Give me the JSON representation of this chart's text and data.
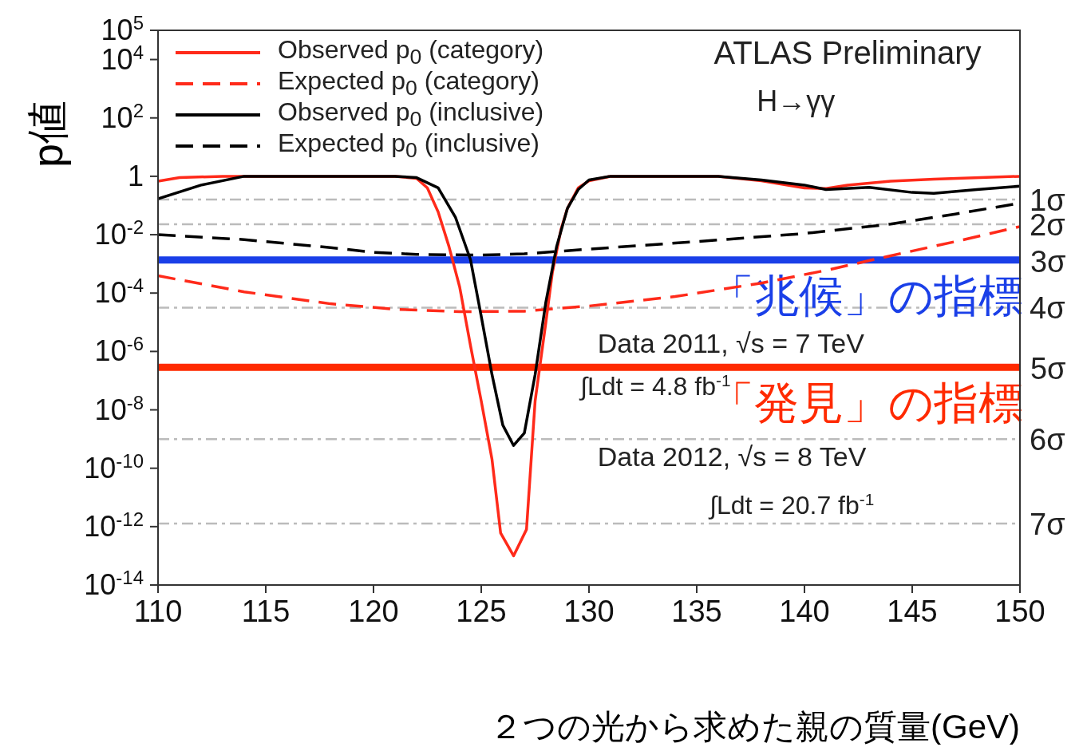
{
  "chart_data": {
    "type": "line",
    "xlabel": "２つの光から求めた親の質量(GeV)",
    "ylabel": "p値",
    "xlim": [
      110,
      150
    ],
    "xticks": [
      110,
      115,
      120,
      125,
      130,
      135,
      140,
      145,
      150
    ],
    "ylim": [
      1e-14,
      100000
    ],
    "log": "y",
    "yticks": [
      {
        "value": 1e-14,
        "label": "10$^{-14}$"
      },
      {
        "value": 1e-12,
        "label": "10$^{-12}$"
      },
      {
        "value": 1e-10,
        "label": "10$^{-10}$"
      },
      {
        "value": 1e-08,
        "label": "10$^{-8}$"
      },
      {
        "value": 1e-06,
        "label": "10$^{-6}$"
      },
      {
        "value": 0.0001,
        "label": "10$^{-4}$"
      },
      {
        "value": 0.01,
        "label": "10$^{-2}$"
      },
      1,
      {
        "value": 100,
        "label": "10$^{2}$"
      },
      {
        "value": 10000,
        "label": "10$^{4}$"
      },
      {
        "value": 100000,
        "label": "10$^{5}$"
      }
    ],
    "legend": "top left",
    "marker": "none",
    "grid": false,
    "series": [
      {
        "name": "Observed p$_{0}$ (category)",
        "color": "#ff2a1a",
        "line_style": "solid",
        "x": [
          110,
          111,
          113,
          117,
          121,
          122,
          122.5,
          123,
          123.5,
          124,
          124.5,
          125,
          125.5,
          125.9,
          126.5,
          127.1,
          127.5,
          128,
          128.3,
          128.7,
          129,
          129.5,
          130,
          131,
          136,
          138,
          140,
          141,
          142,
          144,
          146,
          150
        ],
        "values": [
          0.68,
          0.9,
          1,
          1,
          1,
          0.85,
          0.4,
          0.06,
          0.004,
          0.00016,
          1.6e-06,
          2e-08,
          2e-10,
          6e-13,
          1e-13,
          8e-13,
          2e-08,
          1e-05,
          0.0005,
          0.015,
          0.08,
          0.4,
          0.7,
          1,
          1,
          0.7,
          0.4,
          0.38,
          0.5,
          0.68,
          0.8,
          1
        ]
      },
      {
        "name": "Expected p$_{0}$ (category)",
        "color": "#ff2a1a",
        "line_style": "dashed",
        "x": [
          110,
          114,
          118,
          121,
          124,
          127,
          130,
          134,
          138,
          141,
          144,
          147,
          150
        ],
        "values": [
          0.00039,
          0.00011,
          4.3e-05,
          2.8e-05,
          2.3e-05,
          2.4e-05,
          3.6e-05,
          7.6e-05,
          0.00022,
          0.0006,
          0.0019,
          0.0058,
          0.019
        ]
      },
      {
        "name": "Observed p$_{0}$ (inclusive)",
        "color": "#000000",
        "line_style": "solid",
        "x": [
          110,
          112,
          114,
          121,
          122,
          123,
          123.8,
          124.5,
          125,
          125.5,
          126,
          126.5,
          127,
          127.5,
          128,
          128.5,
          129,
          129.5,
          130,
          131,
          136,
          138,
          140,
          141,
          143,
          145,
          146,
          148,
          150
        ],
        "values": [
          0.17,
          0.5,
          1,
          1,
          0.9,
          0.4,
          0.04,
          0.0014,
          1.6e-05,
          1.6e-07,
          3e-09,
          6e-10,
          1.6e-09,
          1.6e-07,
          5e-05,
          0.004,
          0.08,
          0.35,
          0.75,
          1,
          1,
          0.75,
          0.5,
          0.35,
          0.42,
          0.28,
          0.26,
          0.35,
          0.46
        ]
      },
      {
        "name": "Expected p$_{0}$ (inclusive)",
        "color": "#000000",
        "line_style": "dashed",
        "x": [
          110,
          114,
          118,
          120,
          122,
          125,
          127,
          130,
          135,
          140,
          144,
          147,
          150
        ],
        "values": [
          0.01,
          0.0068,
          0.0036,
          0.0025,
          0.0021,
          0.002,
          0.0022,
          0.0032,
          0.0058,
          0.011,
          0.023,
          0.051,
          0.12
        ]
      }
    ],
    "ref_lines": [
      {
        "axis": "y",
        "value": 0.159,
        "label": "1σ",
        "color": "#bbbbbb",
        "line_style": "dashed"
      },
      {
        "axis": "y",
        "value": 0.0228,
        "label": "2σ",
        "color": "#bbbbbb",
        "line_style": "dashed"
      },
      {
        "axis": "y",
        "value": 3.17e-05,
        "label": "4σ",
        "color": "#bbbbbb",
        "line_style": "dashed"
      },
      {
        "axis": "y",
        "value": 9.9e-10,
        "label": "6σ",
        "color": "#bbbbbb",
        "line_style": "dashed"
      },
      {
        "axis": "y",
        "value": 1.28e-12,
        "label": "7σ",
        "color": "#bbbbbb",
        "line_style": "dashed"
      },
      {
        "axis": "y",
        "value": 0.00135,
        "label": "「兆候」の指標",
        "color": "#1a3fe8",
        "line_style": "solid"
      },
      {
        "axis": "y",
        "value": 2.87e-07,
        "label": "「発見」の指標",
        "color": "#ff2a00",
        "line_style": "solid"
      }
    ],
    "annotations": [
      "ATLAS Preliminary",
      "H→γγ",
      "Data 2011, √s = 7 TeV",
      "∫Ldt = 4.8 fb$^{-1}$",
      "Data 2012, √s = 8 TeV",
      "∫Ldt = 20.7 fb$^{-1}$",
      "3σ",
      "5σ"
    ]
  }
}
